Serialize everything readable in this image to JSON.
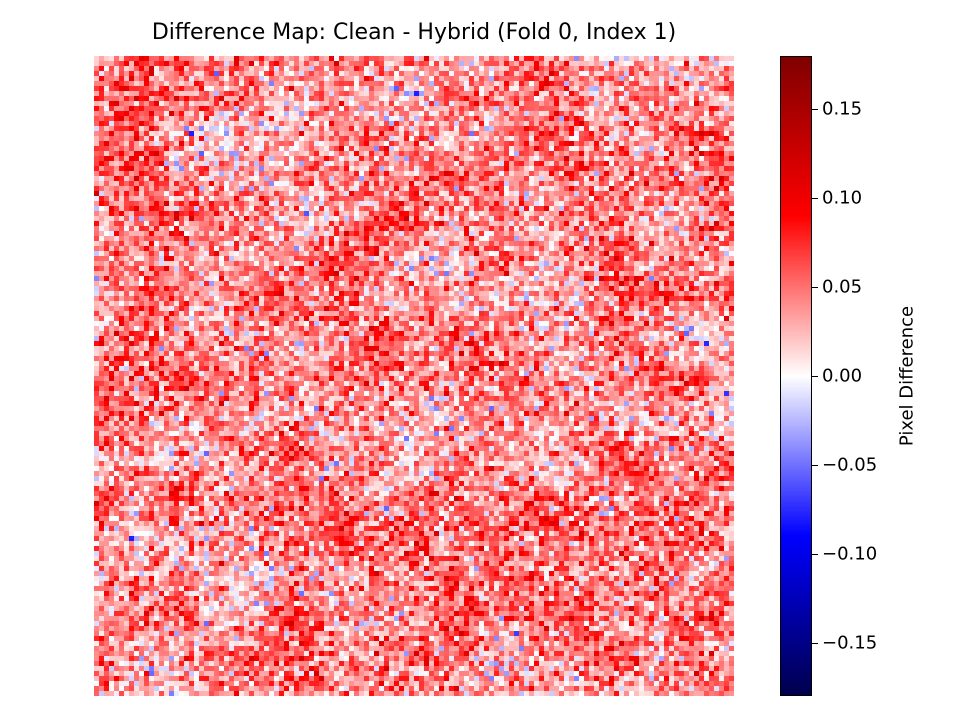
{
  "chart_data": {
    "type": "heatmap",
    "title": "Difference Map: Clean - Hybrid (Fold 0, Index 1)",
    "grid_size": [
      128,
      128
    ],
    "colormap": "seismic",
    "colors": {
      "low": "#00004c",
      "mid": "#ffffff",
      "high": "#7f0000"
    },
    "vmin": -0.18,
    "vmax": 0.18,
    "colorbar": {
      "label": "Pixel Difference",
      "ticks": [
        {
          "value": 0.15,
          "label": "0.15"
        },
        {
          "value": 0.1,
          "label": "0.10"
        },
        {
          "value": 0.05,
          "label": "0.05"
        },
        {
          "value": 0.0,
          "label": "0.00"
        },
        {
          "value": -0.05,
          "label": "−0.05"
        },
        {
          "value": -0.1,
          "label": "−0.10"
        },
        {
          "value": -0.15,
          "label": "−0.15"
        }
      ]
    },
    "value_distribution": {
      "mean": 0.04,
      "std": 0.035,
      "min": -0.13,
      "max": 0.12
    },
    "axes_visible": false,
    "grid": false
  }
}
